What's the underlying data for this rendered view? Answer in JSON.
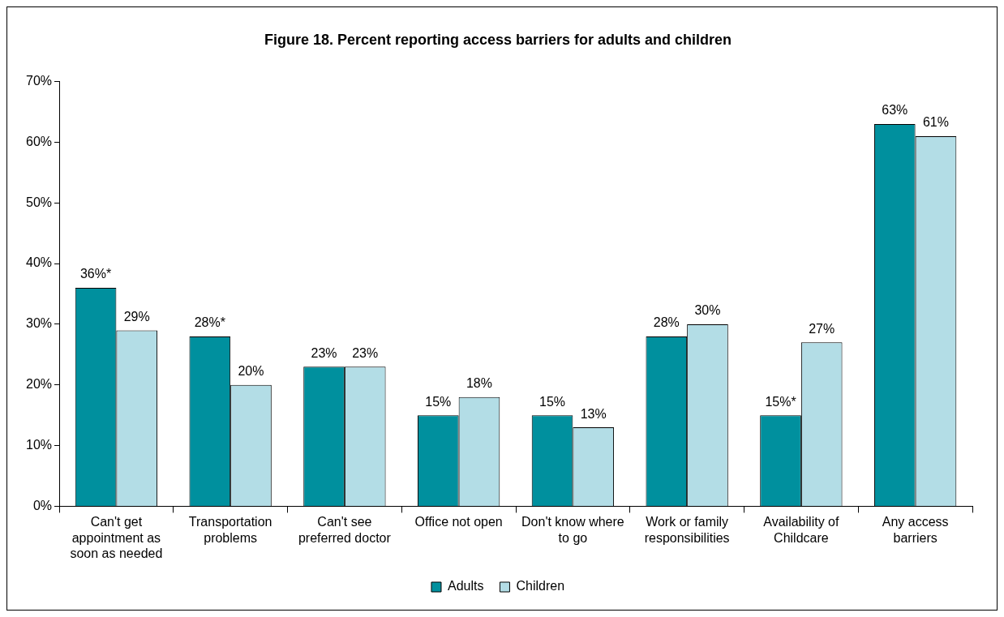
{
  "chart_data": {
    "type": "bar",
    "title": "Figure 18. Percent reporting access barriers for adults and children",
    "categories": [
      "Can't get appointment as soon as needed",
      "Transportation problems",
      "Can't see preferred doctor",
      "Office not open",
      "Don't know where to go",
      "Work or family responsibilities",
      "Availability of Childcare",
      "Any access barriers"
    ],
    "series": [
      {
        "name": "Adults",
        "color": "#00909e",
        "values": [
          36,
          28,
          23,
          15,
          15,
          28,
          15,
          63
        ],
        "value_labels": [
          "36%*",
          "28%*",
          "23%",
          "15%",
          "15%",
          "28%",
          "15%*",
          "63%"
        ]
      },
      {
        "name": "Children",
        "color": "#b3dde6",
        "values": [
          29,
          20,
          23,
          18,
          13,
          30,
          27,
          61
        ],
        "value_labels": [
          "29%",
          "20%",
          "23%",
          "18%",
          "13%",
          "30%",
          "27%",
          "61%"
        ]
      }
    ],
    "ylim": [
      0,
      70
    ],
    "yticks": [
      {
        "value": 0,
        "label": "0%"
      },
      {
        "value": 10,
        "label": "10%"
      },
      {
        "value": 20,
        "label": "20%"
      },
      {
        "value": 30,
        "label": "30%"
      },
      {
        "value": 40,
        "label": "40%"
      },
      {
        "value": 50,
        "label": "50%"
      },
      {
        "value": 60,
        "label": "60%"
      },
      {
        "value": 70,
        "label": "70%"
      }
    ],
    "grid": false,
    "legend": "bottom"
  }
}
